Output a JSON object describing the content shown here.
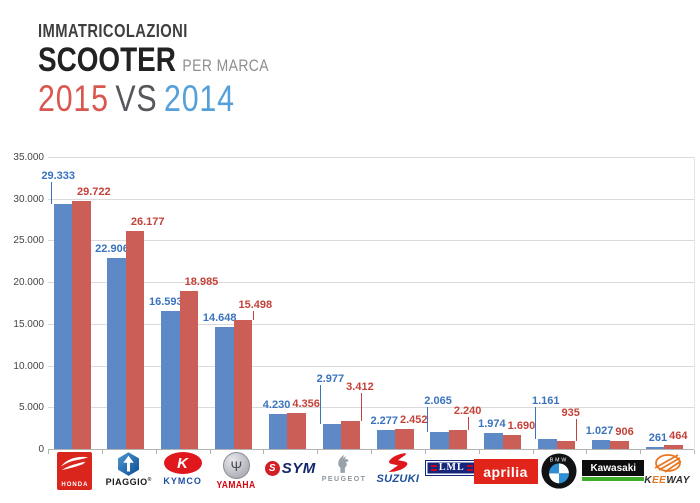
{
  "header": {
    "line1": "IMMATRICOLAZIONI",
    "line2": "SCOOTER",
    "line2_suffix": "PER MARCA",
    "year_new": "2015",
    "vs": "VS",
    "year_old": "2014",
    "colors": {
      "year_new": "#d9574e",
      "vs": "#55575c",
      "year_old": "#55a0d8",
      "line1": "#3f3f3f",
      "line2": "#222222",
      "suffix": "#8f8f8f"
    }
  },
  "chart_data": {
    "type": "bar",
    "title": "Immatricolazioni scooter per marca - 2015 vs 2014",
    "categories": [
      "Honda",
      "Piaggio",
      "Kymco",
      "Yamaha",
      "SYM",
      "Peugeot",
      "Suzuki",
      "LML",
      "Aprilia",
      "BMW",
      "Kawasaki",
      "Keeway"
    ],
    "series": [
      {
        "name": "2014",
        "color": "#5d89c6",
        "label_color": "#3a73bd",
        "values": [
          29333,
          22906,
          16593,
          14648,
          4230,
          2977,
          2277,
          2065,
          1974,
          1161,
          1027,
          261
        ]
      },
      {
        "name": "2015",
        "color": "#cb5f58",
        "label_color": "#c5423a",
        "values": [
          29722,
          26177,
          18985,
          15498,
          4356,
          3412,
          2452,
          2240,
          1690,
          935,
          906,
          464
        ]
      }
    ],
    "ylim": [
      0,
      35000
    ],
    "ytick_step": 5000,
    "ytick_labels": [
      "0",
      "5.000",
      "10.000",
      "15.000",
      "20.000",
      "25.000",
      "30.000",
      "35.000"
    ],
    "grid": true,
    "legend": "none (series colors match title years)",
    "number_format": "italian-thousands-dot",
    "label_raise": [
      [
        19,
        0
      ],
      [
        0,
        0
      ],
      [
        0,
        0
      ],
      [
        0,
        6
      ],
      [
        0,
        0
      ],
      [
        36,
        25
      ],
      [
        0,
        0
      ],
      [
        22,
        10
      ],
      [
        0,
        0
      ],
      [
        29,
        19
      ],
      [
        0,
        0
      ],
      [
        0,
        0
      ]
    ]
  },
  "brands": [
    {
      "id": "honda",
      "label": "HONDA",
      "colors": {
        "primary": "#da251d",
        "text": "#ffffff"
      }
    },
    {
      "id": "piaggio",
      "label": "PIAGGIO",
      "reg": "®",
      "colors": {
        "primary": "#0c4c94",
        "secondary": "#4f9ad2",
        "text": "#1a1a1a"
      }
    },
    {
      "id": "kymco",
      "label": "KYMCO",
      "mark": "K",
      "colors": {
        "primary": "#e0181e",
        "text": "#1e4fa3"
      }
    },
    {
      "id": "yamaha",
      "label": "YAMAHA",
      "mark": "Ψ",
      "colors": {
        "primary": "#9b9da6",
        "text": "#d6020e"
      }
    },
    {
      "id": "sym",
      "label": "SYM",
      "mark": "S",
      "colors": {
        "primary": "#d21f26",
        "text": "#14276b"
      }
    },
    {
      "id": "peugeot",
      "label": "PEUGEOT",
      "colors": {
        "primary": "#99a1a9",
        "text": "#8d959d"
      }
    },
    {
      "id": "suzuki",
      "label": "SUZUKI",
      "colors": {
        "primary": "#e0181e",
        "text": "#1d4f9c"
      }
    },
    {
      "id": "lml",
      "label": "LML",
      "colors": {
        "primary": "#15267d",
        "accent": "#d0021b",
        "text": "#ffffff"
      }
    },
    {
      "id": "aprilia",
      "label": "aprilia",
      "colors": {
        "primary": "#e1251b",
        "text": "#ffffff"
      }
    },
    {
      "id": "bmw",
      "label": "BMW",
      "colors": {
        "primary": "#101214",
        "accent": "#2f8fd6",
        "text": "#ffffff"
      }
    },
    {
      "id": "kawasaki",
      "label": "Kawasaki",
      "colors": {
        "primary": "#0d0d0d",
        "accent": "#3fae2a",
        "text": "#ffffff"
      }
    },
    {
      "id": "keeway",
      "label": "KEEWAY",
      "colors": {
        "primary": "#e87722",
        "text": "#2b2b2b"
      }
    }
  ]
}
